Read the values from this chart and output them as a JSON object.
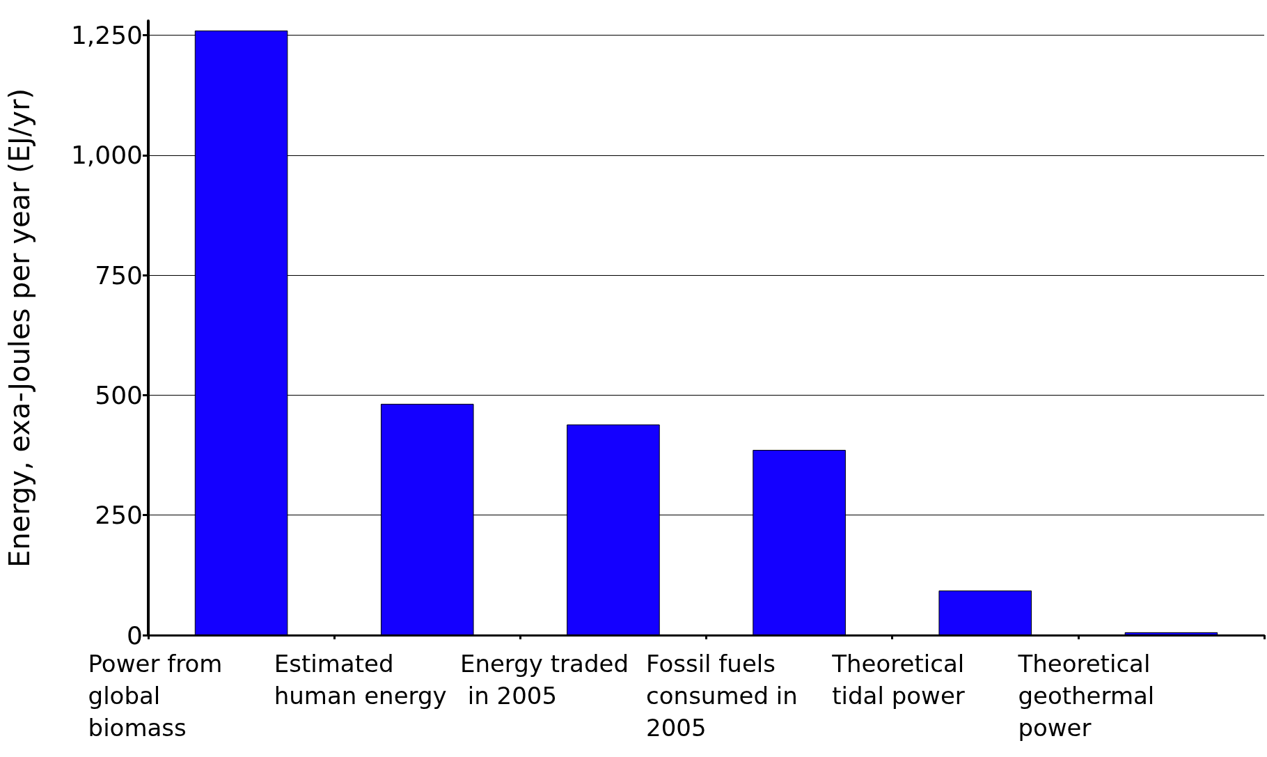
{
  "chart_data": {
    "type": "bar",
    "ylabel": "Energy, exa-Joules per year (EJ/yr)",
    "categories": [
      "Power from global biomass",
      "Estimated human energy",
      "Energy traded in 2005",
      "Fossil fuels consumed in 2005",
      "Theoretical tidal power",
      "Theoretical geothermal power"
    ],
    "values": [
      1260,
      482,
      439,
      386,
      93,
      6
    ],
    "color": "#1400ff",
    "ylim": [
      0,
      1280
    ],
    "yticks": [
      {
        "value": 0,
        "label": "0"
      },
      {
        "value": 250,
        "label": "250"
      },
      {
        "value": 500,
        "label": "500"
      },
      {
        "value": 750,
        "label": "750"
      },
      {
        "value": 1000,
        "label": "1,000"
      },
      {
        "value": 1250,
        "label": "1,250"
      }
    ],
    "grid": "y"
  }
}
